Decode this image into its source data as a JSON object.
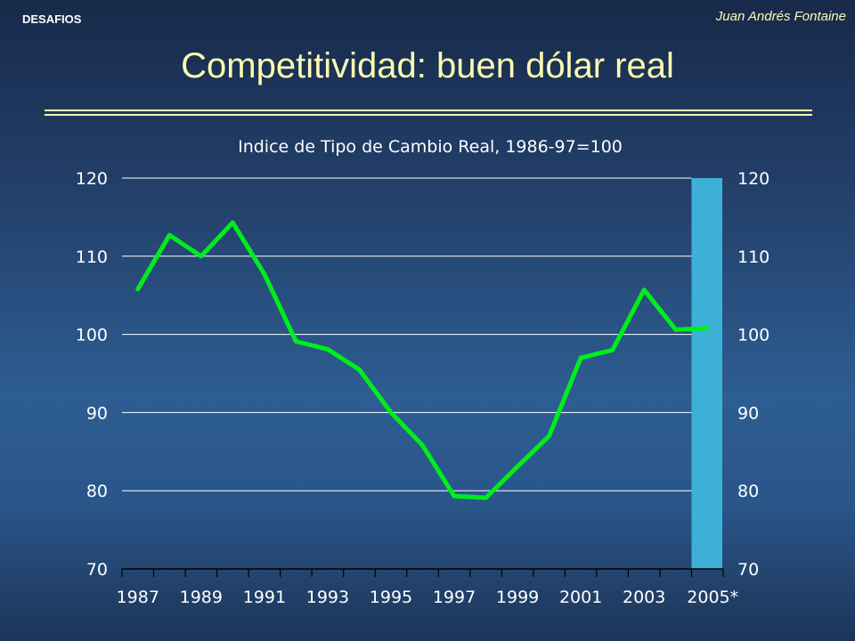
{
  "header": {
    "left_label": "DESAFIOS",
    "author": "Juan Andrés Fontaine"
  },
  "slide": {
    "title": "Competitividad: buen dólar real"
  },
  "colors": {
    "line": "#00ee1c",
    "highlight": "#3db0d8",
    "title": "#fdfbb0",
    "grid": "#ffffff"
  },
  "chart_data": {
    "type": "line",
    "title": "Indice de Tipo de Cambio Real, 1986-97=100",
    "xlabel": "",
    "ylabel": "",
    "ylim": [
      70,
      120
    ],
    "yticks": [
      70,
      80,
      90,
      100,
      110,
      120
    ],
    "xtick_labels": [
      "1987",
      "1989",
      "1991",
      "1993",
      "1995",
      "1997",
      "1999",
      "2001",
      "2003",
      "2005*"
    ],
    "grid": true,
    "highlight_period": "2005*",
    "series": [
      {
        "name": "",
        "x": [
          1987,
          1988,
          1989,
          1990,
          1991,
          1992,
          1993,
          1994,
          1995,
          1996,
          1997,
          1998,
          1999,
          2000,
          2001,
          2002,
          2003,
          2004,
          2005
        ],
        "values": [
          105.8,
          112.7,
          110.0,
          114.3,
          107.7,
          99.1,
          98.1,
          95.5,
          90.0,
          85.8,
          79.3,
          79.1,
          83.1,
          87.0,
          97.0,
          98.0,
          105.7,
          100.6,
          100.8
        ]
      }
    ]
  }
}
